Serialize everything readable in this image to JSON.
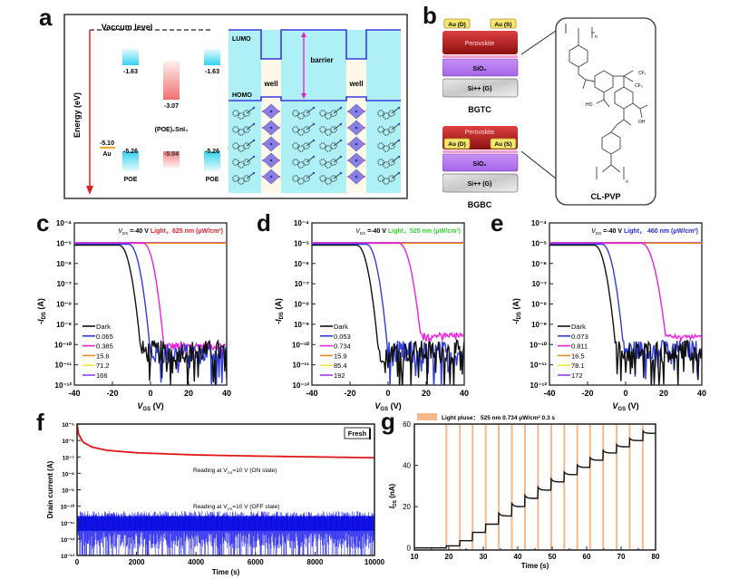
{
  "panels": {
    "a": {
      "letter": "a",
      "vacuum_label": "Vaccum level",
      "energy_axis_label": "Energy (eV)",
      "compound_label": "(POE)₂SnI₄",
      "levels": {
        "poe_lumo": "-1.63",
        "sn_lumo": "-3.07",
        "au_left": "-5.10",
        "poe_homo_left": "-5.26",
        "sn_homo": "-5.04",
        "poe_homo_right": "-5.26",
        "au_right": "-5.10"
      },
      "au_label": "Au",
      "poe_label": "POE",
      "lumo_label": "LUMO",
      "homo_label": "HOMO",
      "barrier_label": "barrier",
      "well_label": "well"
    },
    "b": {
      "letter": "b",
      "au_d": "Au (D)",
      "au_s": "Au (S)",
      "perovskite": "Perovskite",
      "sio2": "SiO₂",
      "si_gate": "Si++ (G)",
      "bgtc": "BGTC",
      "bgbc": "BGBC",
      "polymer_label": "CL-PVP",
      "chem_labels": {
        "cf3": "CF₃",
        "ho": "HO",
        "oh": "OH",
        "o": "O",
        "n": "n"
      }
    },
    "f": {
      "letter": "f",
      "fresh_label": "Fresh"
    },
    "g": {
      "letter": "g"
    }
  },
  "colors": {
    "dark": "#111111",
    "blue": "#2e3de0",
    "magenta": "#f020e0",
    "orange": "#e88a1c",
    "yellow": "#f5e83a",
    "violet": "#9a3ae8",
    "red_text": "#e0202a",
    "green_text": "#30d030",
    "blue_text": "#2a2ae0",
    "pulse": "#f5b88a"
  },
  "chart_data": [
    {
      "id": "c",
      "type": "line",
      "title": "",
      "annotation_vds": "V₀ₛ =-40 V",
      "annotation_vds_main": "V",
      "annotation_vds_sub": "DS",
      "annotation_vds_val": " =-40 V",
      "annotation_light": "Light，625 nm  (μW/cm²)",
      "annotation_color": "#e0202a",
      "xlabel": "V",
      "xlabel_sub": "GS",
      "xlabel_unit": " (V)",
      "ylabel": "-I",
      "ylabel_sub": "DS",
      "ylabel_unit": " (A)",
      "yscale": "log",
      "xlim": [
        -40,
        40
      ],
      "ylim_exp": [
        -12,
        -4
      ],
      "xticks": [
        "-40",
        "-20",
        "0",
        "20",
        "40"
      ],
      "yticks": [
        "10⁻¹²",
        "10⁻¹¹",
        "10⁻¹⁰",
        "10⁻⁹",
        "10⁻⁸",
        "10⁻⁷",
        "10⁻⁶",
        "10⁻⁵",
        "10⁻⁴"
      ],
      "legend": "bottom-left",
      "series": [
        {
          "name": "Dark",
          "color": "#111111",
          "on_exp": -5.1,
          "vth": -5,
          "offexp": -10.4,
          "slope": 0.19,
          "noise": 0.7
        },
        {
          "name": "0.065",
          "color": "#2e3de0",
          "on_exp": -5.05,
          "vth": 0,
          "offexp": -10.5,
          "slope": 0.19,
          "noise": 0.7
        },
        {
          "name": "0.385",
          "color": "#f020e0",
          "on_exp": -5.0,
          "vth": 7,
          "offexp": -10.1,
          "slope": 0.2,
          "noise": 0.25
        },
        {
          "name": "15.6",
          "color": "#e88a1c",
          "on_exp": -5.0,
          "vth": 70,
          "offexp": -10,
          "slope": 0.11,
          "noise": 0
        },
        {
          "name": "71.2",
          "color": "#f5e83a",
          "on_exp": -5.0,
          "vth": 90,
          "offexp": -10,
          "slope": 0.085,
          "noise": 0
        },
        {
          "name": "166",
          "color": "#9a3ae8",
          "on_exp": -4.97,
          "vth": 98,
          "offexp": -10,
          "slope": 0.08,
          "noise": 0
        }
      ]
    },
    {
      "id": "d",
      "type": "line",
      "annotation_vds_main": "V",
      "annotation_vds_sub": "DS",
      "annotation_vds_val": " =-40 V",
      "annotation_light": "Light，525 nm  (μW/cm²)",
      "annotation_color": "#30d030",
      "xlabel": "V",
      "xlabel_sub": "GS",
      "xlabel_unit": " (V)",
      "ylabel": "-I",
      "ylabel_sub": "DS",
      "ylabel_unit": " (A)",
      "yscale": "log",
      "xlim": [
        -40,
        40
      ],
      "ylim_exp": [
        -12,
        -4
      ],
      "xticks": [
        "-40",
        "-20",
        "0",
        "20",
        "40"
      ],
      "yticks": [
        "10⁻¹²",
        "10⁻¹¹",
        "10⁻¹⁰",
        "10⁻⁹",
        "10⁻⁸",
        "10⁻⁷",
        "10⁻⁶",
        "10⁻⁵",
        "10⁻⁴"
      ],
      "legend": "bottom-left",
      "series": [
        {
          "name": "Dark",
          "color": "#111111",
          "on_exp": -5.1,
          "vth": -5,
          "offexp": -10.4,
          "slope": 0.19,
          "noise": 0.7
        },
        {
          "name": "0.053",
          "color": "#2e3de0",
          "on_exp": -5.05,
          "vth": 0,
          "offexp": -10.5,
          "slope": 0.19,
          "noise": 0.8
        },
        {
          "name": "0.734",
          "color": "#f020e0",
          "on_exp": -5.0,
          "vth": 17,
          "offexp": -9.55,
          "slope": 0.19,
          "noise": 0.15
        },
        {
          "name": "15.9",
          "color": "#e88a1c",
          "on_exp": -5.0,
          "vth": 75,
          "offexp": -10,
          "slope": 0.1,
          "noise": 0
        },
        {
          "name": "85.4",
          "color": "#f5e83a",
          "on_exp": -5.0,
          "vth": 95,
          "offexp": -10,
          "slope": 0.085,
          "noise": 0
        },
        {
          "name": "192",
          "color": "#9a3ae8",
          "on_exp": -4.97,
          "vth": 105,
          "offexp": -10,
          "slope": 0.08,
          "noise": 0
        }
      ]
    },
    {
      "id": "e",
      "type": "line",
      "annotation_vds_main": "V",
      "annotation_vds_sub": "DS",
      "annotation_vds_val": " =-40 V",
      "annotation_light": "Light， 460 nm  (μW/cm²)",
      "annotation_color": "#2a2ae0",
      "xlabel": "V",
      "xlabel_sub": "GS",
      "xlabel_unit": " (V)",
      "ylabel": "-I",
      "ylabel_sub": "DS",
      "ylabel_unit": " (A)",
      "yscale": "log",
      "xlim": [
        -40,
        40
      ],
      "ylim_exp": [
        -12,
        -4
      ],
      "xticks": [
        "-40",
        "-20",
        "0",
        "20",
        "40"
      ],
      "yticks": [
        "10⁻¹²",
        "10⁻¹¹",
        "10⁻¹⁰",
        "10⁻⁹",
        "10⁻⁸",
        "10⁻⁷",
        "10⁻⁶",
        "10⁻⁵",
        "10⁻⁴"
      ],
      "legend": "bottom-left",
      "series": [
        {
          "name": "Dark",
          "color": "#111111",
          "on_exp": -5.1,
          "vth": -5,
          "offexp": -10.4,
          "slope": 0.19,
          "noise": 0.7
        },
        {
          "name": "0.073",
          "color": "#2e3de0",
          "on_exp": -5.05,
          "vth": -1,
          "offexp": -10.3,
          "slope": 0.19,
          "noise": 0.6
        },
        {
          "name": "0.811",
          "color": "#f020e0",
          "on_exp": -5.0,
          "vth": 21,
          "offexp": -9.6,
          "slope": 0.17,
          "noise": 0.1
        },
        {
          "name": "16.5",
          "color": "#e88a1c",
          "on_exp": -5.0,
          "vth": 78,
          "offexp": -10,
          "slope": 0.1,
          "noise": 0
        },
        {
          "name": "78.1",
          "color": "#f5e83a",
          "on_exp": -5.0,
          "vth": 95,
          "offexp": -10,
          "slope": 0.085,
          "noise": 0
        },
        {
          "name": "172",
          "color": "#9a3ae8",
          "on_exp": -4.97,
          "vth": 102,
          "offexp": -10,
          "slope": 0.08,
          "noise": 0
        }
      ]
    },
    {
      "id": "f",
      "type": "line",
      "xlabel": "Time (s)",
      "ylabel": "Drain current (A)",
      "yscale": "log",
      "xlim": [
        0,
        10000
      ],
      "ylim_exp": [
        -13,
        -5
      ],
      "xticks": [
        "0",
        "2000",
        "4000",
        "6000",
        "8000",
        "10000"
      ],
      "yticks": [
        "10⁻¹³",
        "10⁻¹²",
        "10⁻¹¹",
        "10⁻¹⁰",
        "10⁻⁹",
        "10⁻⁸",
        "10⁻⁷",
        "10⁻⁶",
        "10⁻⁵"
      ],
      "legend_box": "Fresh",
      "annotation_on": "Reading at Vₓₛ=10 V (ON state)",
      "annotation_on_parts": [
        "Reading at V",
        "GS",
        "=10 V (ON state)"
      ],
      "annotation_off_parts": [
        "Reading at V",
        "GS",
        "=10 V (OFF state)"
      ],
      "series": [
        {
          "name": "ON state",
          "color": "#e01818",
          "points_exp": [
            [
              0,
              -5.0
            ],
            [
              50,
              -5.6
            ],
            [
              200,
              -6.1
            ],
            [
              500,
              -6.4
            ],
            [
              1000,
              -6.6
            ],
            [
              2000,
              -6.75
            ],
            [
              4000,
              -6.88
            ],
            [
              6000,
              -6.95
            ],
            [
              8000,
              -7.0
            ],
            [
              10000,
              -7.05
            ]
          ]
        },
        {
          "name": "OFF state",
          "color": "#1a1af0",
          "mean_exp": -11.0,
          "range_exp": [
            -13,
            -10.2
          ]
        }
      ]
    },
    {
      "id": "g",
      "type": "line",
      "xlabel": "Time (s)",
      "ylabel": "I",
      "ylabel_sub": "DS",
      "ylabel_unit": " (nA)",
      "xlim": [
        10,
        80
      ],
      "ylim": [
        -1,
        60
      ],
      "xticks": [
        "10",
        "20",
        "30",
        "40",
        "50",
        "60",
        "70",
        "80"
      ],
      "yticks": [
        "0",
        "20",
        "40",
        "60"
      ],
      "legend_label": "Light pluse： 525 nm  0.734 μW/cm² 0.3 s",
      "legend": "top-left",
      "pulse_times": [
        19.3,
        23.2,
        26.9,
        30.7,
        34.5,
        38.3,
        42.1,
        45.9,
        49.7,
        53.5,
        57.3,
        61.0,
        64.8,
        68.7,
        72.5,
        76.3
      ],
      "step_levels": [
        0,
        1.0,
        3.5,
        7.5,
        11.5,
        15.5,
        20.0,
        24.0,
        28.0,
        32.0,
        35.5,
        39.0,
        42.5,
        46.0,
        49.0,
        52.0,
        55.5
      ]
    }
  ]
}
